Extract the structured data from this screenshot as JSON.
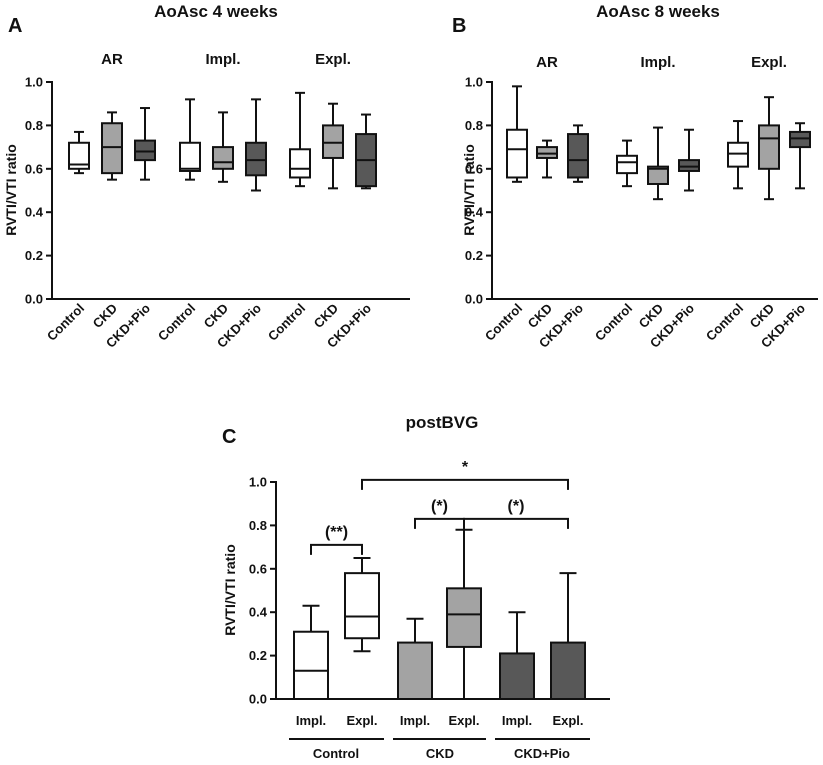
{
  "colors": {
    "Control": "#ffffff",
    "CKD": "#a3a3a3",
    "CKD+Pio": "#585858",
    "ink": "#111111"
  },
  "chart_data": [
    {
      "panel": "A",
      "type": "box",
      "title": "AoAsc 4 weeks",
      "ylabel": "RVTI/VTI ratio",
      "ylim": [
        0,
        1.0
      ],
      "yticks": [
        "0.0",
        "0.2",
        "0.4",
        "0.6",
        "0.8",
        "1.0"
      ],
      "groups": [
        {
          "label": "AR",
          "boxes": [
            {
              "category": "Control",
              "min": 0.58,
              "q1": 0.6,
              "median": 0.62,
              "q3": 0.72,
              "max": 0.77
            },
            {
              "category": "CKD",
              "min": 0.55,
              "q1": 0.58,
              "median": 0.7,
              "q3": 0.81,
              "max": 0.86
            },
            {
              "category": "CKD+Pio",
              "min": 0.55,
              "q1": 0.64,
              "median": 0.68,
              "q3": 0.73,
              "max": 0.88
            }
          ]
        },
        {
          "label": "Impl.",
          "boxes": [
            {
              "category": "Control",
              "min": 0.55,
              "q1": 0.59,
              "median": 0.6,
              "q3": 0.72,
              "max": 0.92
            },
            {
              "category": "CKD",
              "min": 0.54,
              "q1": 0.6,
              "median": 0.63,
              "q3": 0.7,
              "max": 0.86
            },
            {
              "category": "CKD+Pio",
              "min": 0.5,
              "q1": 0.57,
              "median": 0.64,
              "q3": 0.72,
              "max": 0.92
            }
          ]
        },
        {
          "label": "Expl.",
          "boxes": [
            {
              "category": "Control",
              "min": 0.52,
              "q1": 0.56,
              "median": 0.6,
              "q3": 0.69,
              "max": 0.95
            },
            {
              "category": "CKD",
              "min": 0.51,
              "q1": 0.65,
              "median": 0.72,
              "q3": 0.8,
              "max": 0.9
            },
            {
              "category": "CKD+Pio",
              "min": 0.51,
              "q1": 0.52,
              "median": 0.64,
              "q3": 0.76,
              "max": 0.85
            }
          ]
        }
      ]
    },
    {
      "panel": "B",
      "type": "box",
      "title": "AoAsc 8 weeks",
      "ylabel": "RVTI/VTI ratio",
      "ylim": [
        0,
        1.0
      ],
      "yticks": [
        "0.0",
        "0.2",
        "0.4",
        "0.6",
        "0.8",
        "1.0"
      ],
      "groups": [
        {
          "label": "AR",
          "boxes": [
            {
              "category": "Control",
              "min": 0.54,
              "q1": 0.56,
              "median": 0.69,
              "q3": 0.78,
              "max": 0.98
            },
            {
              "category": "CKD",
              "min": 0.56,
              "q1": 0.65,
              "median": 0.67,
              "q3": 0.7,
              "max": 0.73
            },
            {
              "category": "CKD+Pio",
              "min": 0.54,
              "q1": 0.56,
              "median": 0.64,
              "q3": 0.76,
              "max": 0.8
            }
          ]
        },
        {
          "label": "Impl.",
          "boxes": [
            {
              "category": "Control",
              "min": 0.52,
              "q1": 0.58,
              "median": 0.63,
              "q3": 0.66,
              "max": 0.73
            },
            {
              "category": "CKD",
              "min": 0.46,
              "q1": 0.53,
              "median": 0.6,
              "q3": 0.61,
              "max": 0.79
            },
            {
              "category": "CKD+Pio",
              "min": 0.5,
              "q1": 0.59,
              "median": 0.61,
              "q3": 0.64,
              "max": 0.78
            }
          ]
        },
        {
          "label": "Expl.",
          "boxes": [
            {
              "category": "Control",
              "min": 0.51,
              "q1": 0.61,
              "median": 0.67,
              "q3": 0.72,
              "max": 0.82
            },
            {
              "category": "CKD",
              "min": 0.46,
              "q1": 0.6,
              "median": 0.74,
              "q3": 0.8,
              "max": 0.93
            },
            {
              "category": "CKD+Pio",
              "min": 0.51,
              "q1": 0.7,
              "median": 0.74,
              "q3": 0.77,
              "max": 0.81
            }
          ]
        }
      ]
    },
    {
      "panel": "C",
      "type": "box",
      "title": "postBVG",
      "ylabel": "RVTI/VTI ratio",
      "ylim": [
        0,
        1.0
      ],
      "yticks": [
        "0.0",
        "0.2",
        "0.4",
        "0.6",
        "0.8",
        "1.0"
      ],
      "groups": [
        {
          "label": "Control",
          "boxes": [
            {
              "category": "Impl.",
              "fill": "Control",
              "min": 0.0,
              "q1": 0.0,
              "median": 0.13,
              "q3": 0.31,
              "max": 0.43
            },
            {
              "category": "Expl.",
              "fill": "Control",
              "min": 0.22,
              "q1": 0.28,
              "median": 0.38,
              "q3": 0.58,
              "max": 0.65
            }
          ]
        },
        {
          "label": "CKD",
          "boxes": [
            {
              "category": "Impl.",
              "fill": "CKD",
              "min": 0.0,
              "q1": 0.0,
              "median": 0.0,
              "q3": 0.26,
              "max": 0.37
            },
            {
              "category": "Expl.",
              "fill": "CKD",
              "min": 0.0,
              "q1": 0.24,
              "median": 0.39,
              "q3": 0.51,
              "max": 0.78
            }
          ]
        },
        {
          "label": "CKD+Pio",
          "boxes": [
            {
              "category": "Impl.",
              "fill": "CKD+Pio",
              "min": 0.0,
              "q1": 0.0,
              "median": 0.0,
              "q3": 0.21,
              "max": 0.4
            },
            {
              "category": "Expl.",
              "fill": "CKD+Pio",
              "min": 0.0,
              "q1": 0.0,
              "median": 0.0,
              "q3": 0.26,
              "max": 0.58
            }
          ]
        }
      ],
      "significance": [
        {
          "from": 0,
          "to": 1,
          "y": 0.71,
          "label": "(**)"
        },
        {
          "from": 2,
          "to": 3,
          "y": 0.83,
          "label": "(*)"
        },
        {
          "from": 3,
          "to": 5,
          "y": 0.83,
          "label": "(*)"
        },
        {
          "from": 1,
          "to": 5,
          "y": 1.01,
          "label": "*"
        }
      ]
    }
  ]
}
